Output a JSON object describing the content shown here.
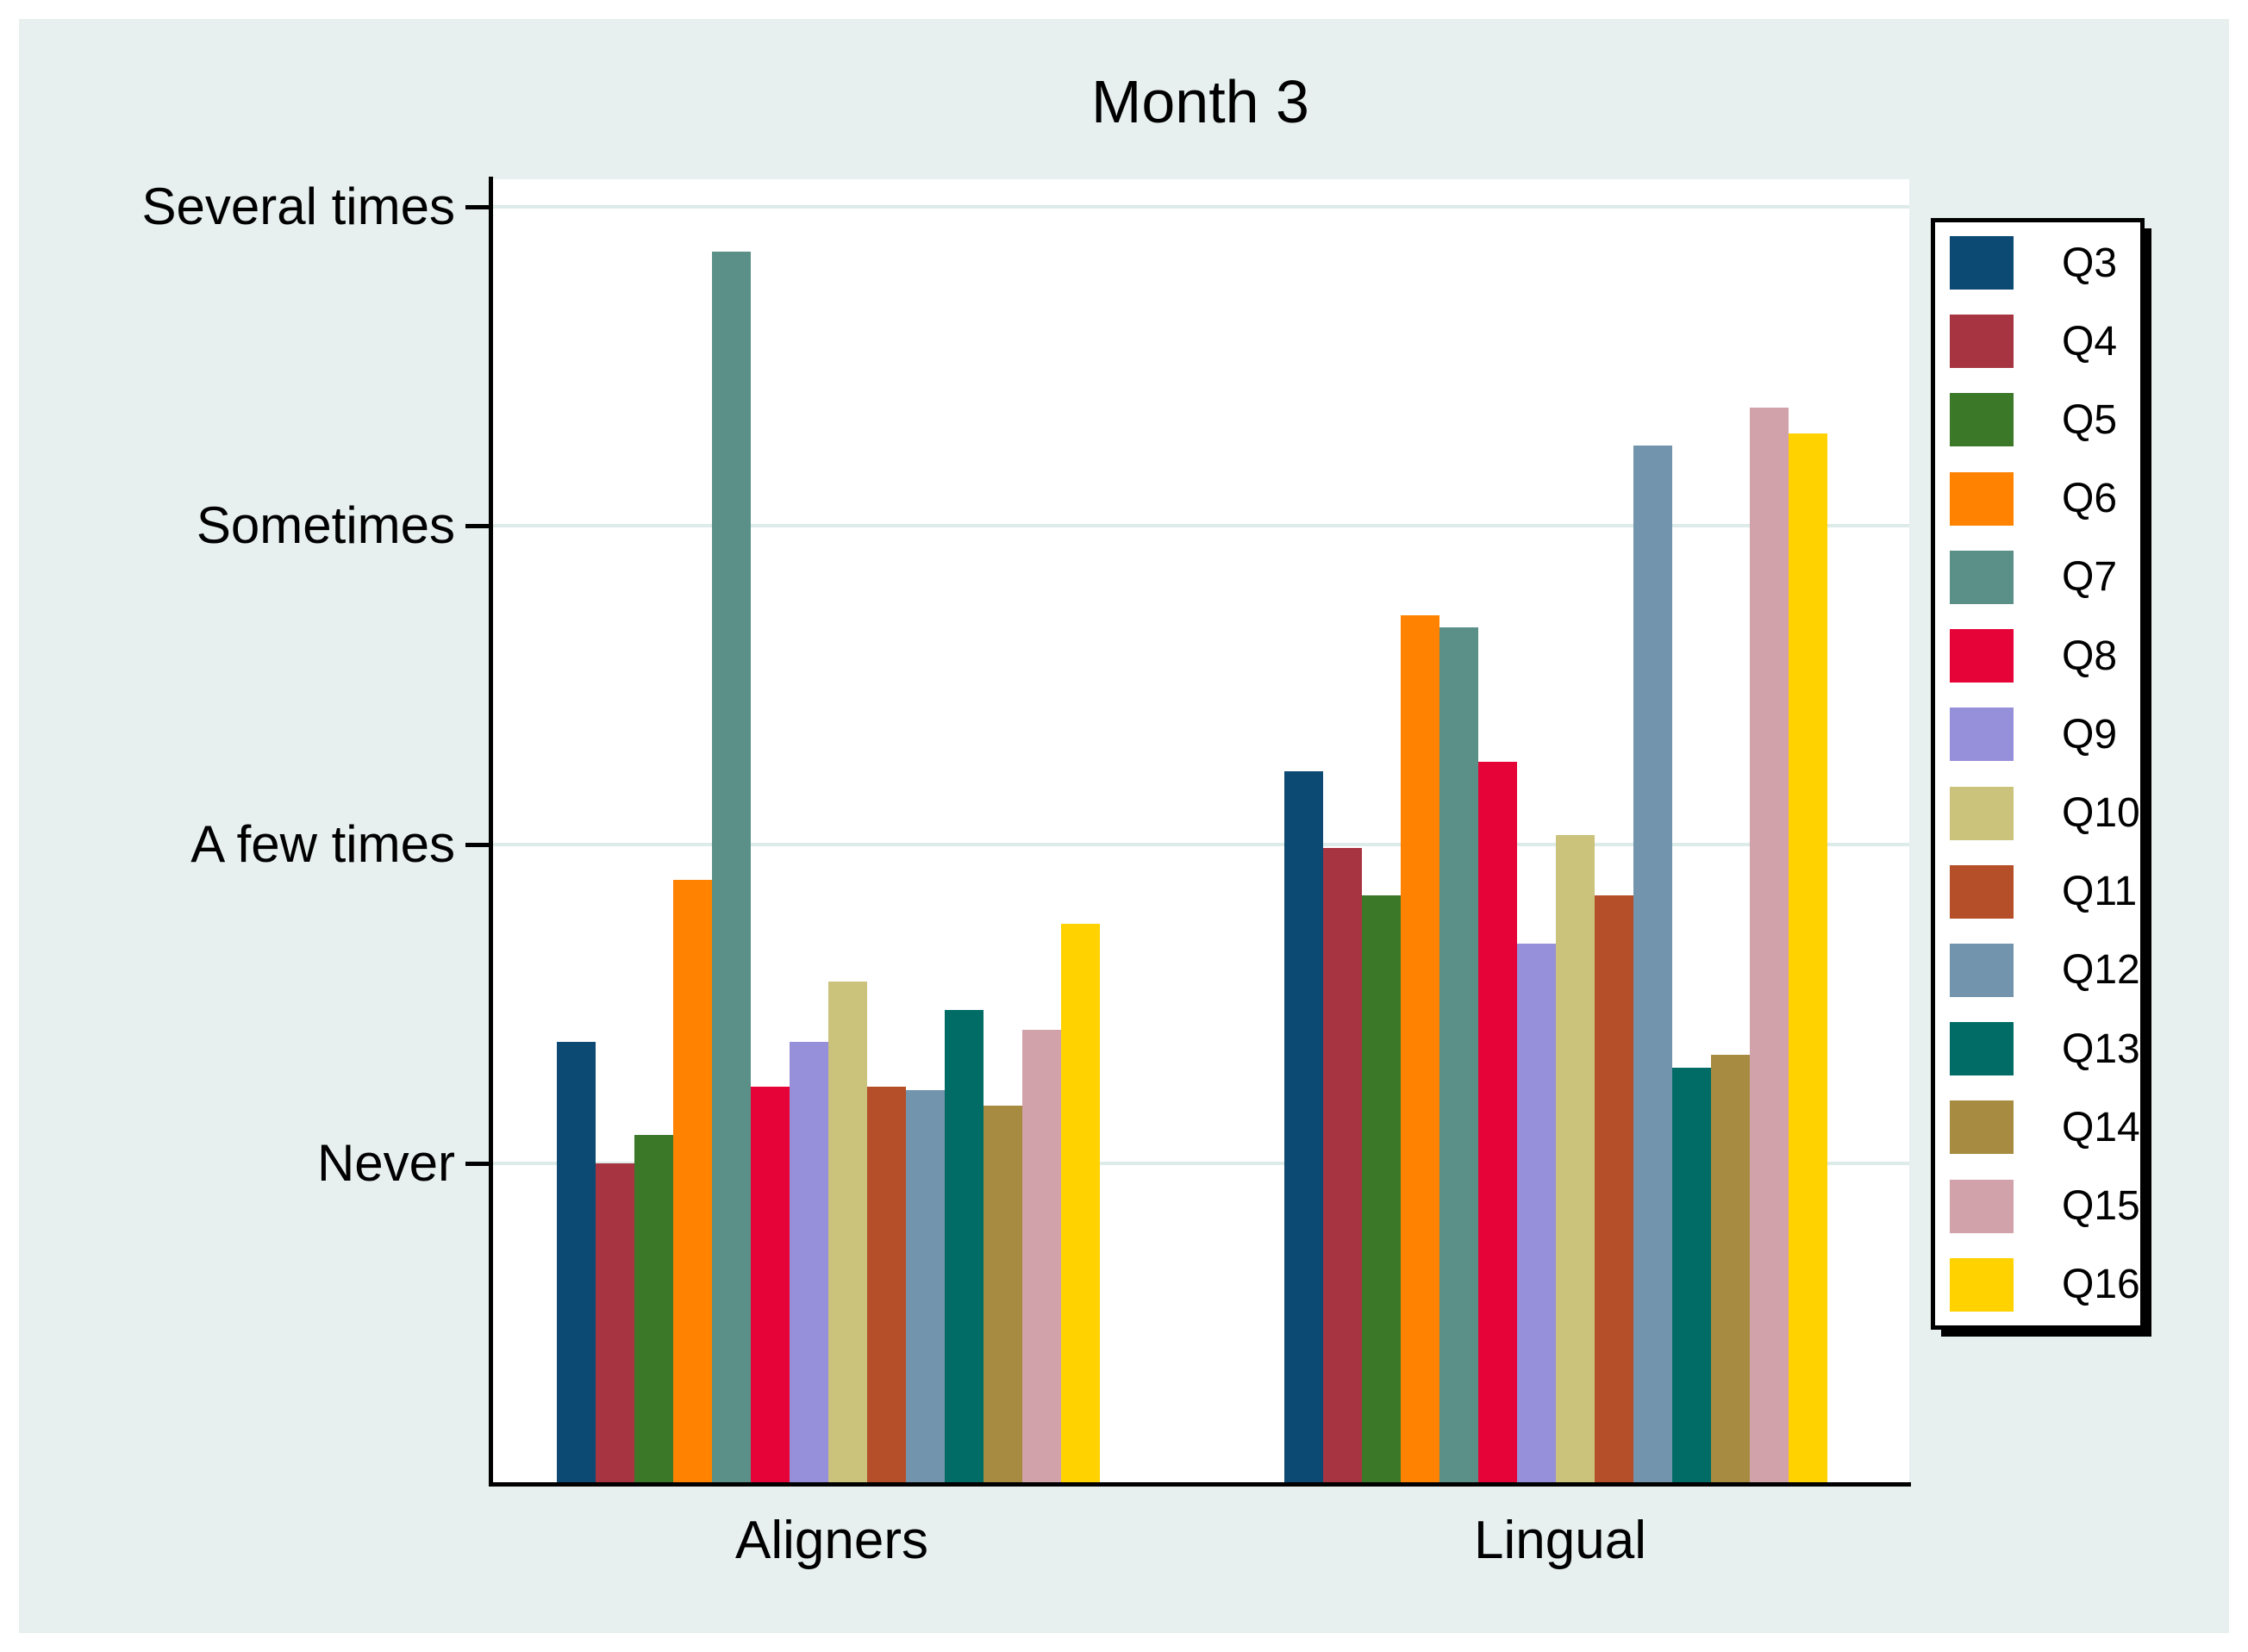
{
  "figure": {
    "background_color": "#e7f0ee",
    "plot_background": "#ffffff",
    "gridline_color": "#ddebe9",
    "axis_color": "#000000"
  },
  "chart_data": {
    "type": "bar",
    "title": "Month 3",
    "categories": [
      "Aligners",
      "Lingual"
    ],
    "grid": true,
    "legend_position": "right",
    "ylim": [
      0,
      4.1
    ],
    "y_axis": {
      "ticks": [
        {
          "label": "Never",
          "value": 1
        },
        {
          "label": "A few times",
          "value": 2
        },
        {
          "label": "Sometimes",
          "value": 3
        },
        {
          "label": "Several times",
          "value": 4
        }
      ]
    },
    "series": [
      {
        "name": "Q3",
        "color": "#0d4a73",
        "values": [
          1.38,
          2.23
        ]
      },
      {
        "name": "Q4",
        "color": "#a63441",
        "values": [
          1.0,
          1.99
        ]
      },
      {
        "name": "Q5",
        "color": "#3b7828",
        "values": [
          1.09,
          1.84
        ]
      },
      {
        "name": "Q6",
        "color": "#ff8300",
        "values": [
          1.89,
          2.72
        ]
      },
      {
        "name": "Q7",
        "color": "#5b9089",
        "values": [
          3.86,
          2.68
        ]
      },
      {
        "name": "Q8",
        "color": "#e50338",
        "values": [
          1.24,
          2.26
        ]
      },
      {
        "name": "Q9",
        "color": "#968fd9",
        "values": [
          1.38,
          1.69
        ]
      },
      {
        "name": "Q10",
        "color": "#cbc27c",
        "values": [
          1.57,
          2.03
        ]
      },
      {
        "name": "Q11",
        "color": "#b54f29",
        "values": [
          1.24,
          1.84
        ]
      },
      {
        "name": "Q12",
        "color": "#7294ad",
        "values": [
          1.23,
          3.25
        ]
      },
      {
        "name": "Q13",
        "color": "#006c65",
        "values": [
          1.48,
          1.3
        ]
      },
      {
        "name": "Q14",
        "color": "#a78b41",
        "values": [
          1.18,
          1.34
        ]
      },
      {
        "name": "Q15",
        "color": "#d2a2aa",
        "values": [
          1.42,
          3.37
        ]
      },
      {
        "name": "Q16",
        "color": "#ffd200",
        "values": [
          1.75,
          3.29
        ]
      }
    ]
  }
}
